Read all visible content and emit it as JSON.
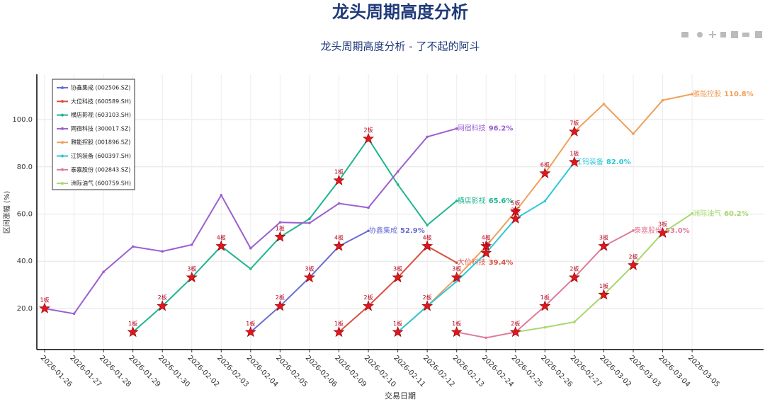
{
  "chart_data": {
    "type": "line",
    "title": "龙头周期高度分析",
    "subtitle": "龙头周期高度分析 - 了不起的阿斗",
    "x_label": "交易日期",
    "y_label": "区间涨幅 (%)",
    "categories": [
      "2026-01-26",
      "2026-01-27",
      "2026-01-28",
      "2026-01-29",
      "2026-01-30",
      "2026-02-02",
      "2026-02-03",
      "2026-02-04",
      "2026-02-05",
      "2026-02-06",
      "2026-02-09",
      "2026-02-10",
      "2026-02-11",
      "2026-02-12",
      "2026-02-13",
      "2026-02-24",
      "2026-02-25",
      "2026-02-26",
      "2026-02-27",
      "2026-03-02",
      "2026-03-03",
      "2026-03-04",
      "2026-03-05"
    ],
    "ylim": [
      2.6,
      119.2
    ],
    "yticks": [
      {
        "value": 20,
        "label": "20.0"
      },
      {
        "value": 40,
        "label": "40.0"
      },
      {
        "value": 60,
        "label": "60.0"
      },
      {
        "value": 80,
        "label": "80.0"
      },
      {
        "value": 100,
        "label": "100.0"
      }
    ],
    "grid": true,
    "legend": "top-left",
    "series": [
      {
        "name": "协鑫集成 (002506.SZ)",
        "short": "协鑫集成",
        "end_label": "52.9%",
        "color": "#6a6cd4",
        "values": [
          null,
          null,
          null,
          null,
          null,
          null,
          null,
          10,
          21,
          33.1,
          46.4,
          52.9,
          null,
          null,
          null,
          null,
          null,
          null,
          null,
          null,
          null,
          null,
          null
        ],
        "boards": [
          null,
          null,
          null,
          null,
          null,
          null,
          null,
          "1板",
          "2板",
          "3板",
          "4板",
          null,
          null,
          null,
          null,
          null,
          null,
          null,
          null,
          null,
          null,
          null,
          null
        ]
      },
      {
        "name": "大位科技 (600589.SH)",
        "short": "大位科技",
        "end_label": "39.4%",
        "color": "#d9503f",
        "values": [
          null,
          null,
          null,
          null,
          null,
          null,
          null,
          null,
          null,
          null,
          10,
          21,
          33.1,
          46.4,
          39.4,
          null,
          null,
          null,
          null,
          null,
          null,
          null,
          null
        ],
        "boards": [
          null,
          null,
          null,
          null,
          null,
          null,
          null,
          null,
          null,
          null,
          "1板",
          "2板",
          "3板",
          "4板",
          null,
          null,
          null,
          null,
          null,
          null,
          null,
          null,
          null
        ]
      },
      {
        "name": "横店影视 (603103.SH)",
        "short": "横店影视",
        "end_label": "65.6%",
        "color": "#1fb58f",
        "values": [
          null,
          null,
          null,
          10,
          21,
          33.1,
          46.4,
          36.8,
          50.3,
          58,
          74.2,
          91.9,
          72.5,
          55.3,
          65.6,
          null,
          null,
          null,
          null,
          null,
          null,
          null,
          null
        ],
        "boards": [
          null,
          null,
          null,
          "1板",
          "2板",
          "3板",
          "4板",
          null,
          "1板",
          null,
          "1板",
          "2板",
          null,
          null,
          null,
          null,
          null,
          null,
          null,
          null,
          null,
          null,
          null
        ]
      },
      {
        "name": "网宿科技 (300017.SZ)",
        "short": "网宿科技",
        "end_label": "96.2%",
        "color": "#9b5fd1",
        "values": [
          20,
          17.8,
          35.5,
          46.2,
          44.2,
          47,
          68,
          45.5,
          56.5,
          56.2,
          64.5,
          62.7,
          78,
          92.7,
          96.2,
          null,
          null,
          null,
          null,
          null,
          null,
          null,
          null
        ],
        "boards": [
          "1板",
          null,
          null,
          null,
          null,
          null,
          null,
          null,
          null,
          null,
          null,
          null,
          null,
          null,
          null,
          null,
          null,
          null,
          null,
          null,
          null,
          null,
          null
        ]
      },
      {
        "name": "雅能控股 (001896.SZ)",
        "short": "雅能控股",
        "end_label": "110.8%",
        "color": "#f0a05a",
        "values": [
          null,
          null,
          null,
          null,
          null,
          null,
          null,
          null,
          null,
          null,
          null,
          null,
          10,
          21,
          33.1,
          46.4,
          61.1,
          77.2,
          94.9,
          106.6,
          94,
          108.2,
          110.8
        ],
        "boards": [
          null,
          null,
          null,
          null,
          null,
          null,
          null,
          null,
          null,
          null,
          null,
          null,
          null,
          null,
          "3板",
          "4板",
          "5板",
          "6板",
          "7板",
          null,
          null,
          null,
          null
        ]
      },
      {
        "name": "江钨装备 (600397.SH)",
        "short": "江钨装备",
        "end_label": "82.0%",
        "color": "#2ec7d6",
        "values": [
          null,
          null,
          null,
          null,
          null,
          null,
          null,
          null,
          null,
          null,
          null,
          null,
          10,
          21,
          31.5,
          43.5,
          58,
          65.5,
          82,
          null,
          null,
          null,
          null
        ],
        "boards": [
          null,
          null,
          null,
          null,
          null,
          null,
          null,
          null,
          null,
          null,
          null,
          null,
          "1板",
          "2板",
          null,
          "1板",
          "2板",
          null,
          "1板",
          null,
          null,
          null,
          null
        ]
      },
      {
        "name": "泰嘉股份 (002843.SZ)",
        "short": "泰嘉股份",
        "end_label": "53.0%",
        "color": "#e07b97",
        "values": [
          null,
          null,
          null,
          null,
          null,
          null,
          null,
          null,
          null,
          null,
          null,
          null,
          null,
          null,
          10,
          7.6,
          10,
          21,
          33.1,
          46.4,
          53,
          null,
          null
        ],
        "boards": [
          null,
          null,
          null,
          null,
          null,
          null,
          null,
          null,
          null,
          null,
          null,
          null,
          null,
          null,
          "1板",
          null,
          "2板",
          "1板",
          "2板",
          "3板",
          null,
          null,
          null
        ]
      },
      {
        "name": "洲际油气 (600759.SH)",
        "short": "洲际油气",
        "end_label": "60.2%",
        "color": "#a8d86e",
        "values": [
          null,
          null,
          null,
          null,
          null,
          null,
          null,
          null,
          null,
          null,
          null,
          null,
          null,
          null,
          null,
          null,
          10,
          12,
          14.3,
          25.8,
          38.3,
          52,
          60.2
        ],
        "boards": [
          null,
          null,
          null,
          null,
          null,
          null,
          null,
          null,
          null,
          null,
          null,
          null,
          null,
          null,
          null,
          null,
          null,
          null,
          null,
          "1板",
          "2板",
          "3板",
          null
        ]
      }
    ]
  }
}
